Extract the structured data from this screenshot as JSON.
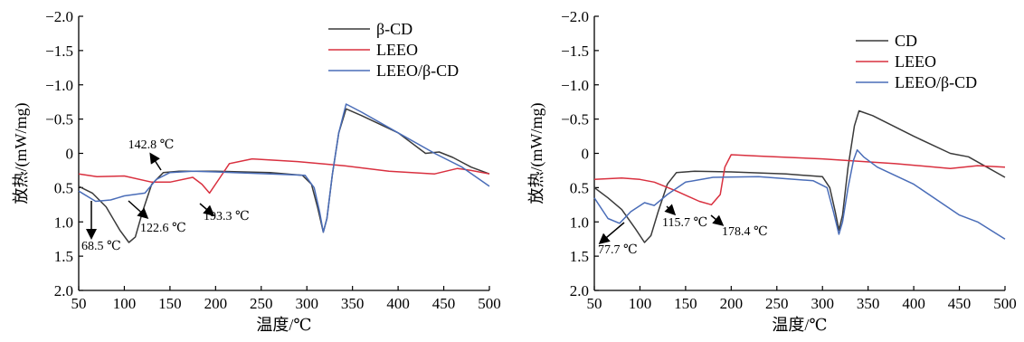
{
  "chart_data": [
    {
      "type": "line",
      "xlabel": "温度/℃",
      "ylabel": "放热/(mW/mg)",
      "xlim": [
        50,
        500
      ],
      "ylim": [
        -2.0,
        2.0
      ],
      "y_inverted": true,
      "xticks": [
        "50",
        "100",
        "150",
        "200",
        "250",
        "300",
        "350",
        "400",
        "450",
        "500"
      ],
      "yticks": [
        "−2.0",
        "−1.5",
        "−1.0",
        "−0.5",
        "0",
        "0.5",
        "1.0",
        "1.5",
        "2.0"
      ],
      "legend_position": "top-right",
      "series": [
        {
          "name": "β-CD",
          "color": "#3a3a3a",
          "points": [
            [
              50,
              0.48
            ],
            [
              65,
              0.58
            ],
            [
              80,
              0.78
            ],
            [
              95,
              1.12
            ],
            [
              105,
              1.3
            ],
            [
              112,
              1.22
            ],
            [
              120,
              0.85
            ],
            [
              130,
              0.45
            ],
            [
              142.8,
              0.28
            ],
            [
              160,
              0.26
            ],
            [
              200,
              0.26
            ],
            [
              260,
              0.28
            ],
            [
              295,
              0.32
            ],
            [
              305,
              0.45
            ],
            [
              312,
              0.8
            ],
            [
              318,
              1.15
            ],
            [
              322,
              0.95
            ],
            [
              328,
              0.3
            ],
            [
              335,
              -0.3
            ],
            [
              343,
              -0.65
            ],
            [
              360,
              -0.55
            ],
            [
              400,
              -0.3
            ],
            [
              430,
              0.0
            ],
            [
              445,
              -0.02
            ],
            [
              460,
              0.06
            ],
            [
              480,
              0.2
            ],
            [
              500,
              0.3
            ]
          ]
        },
        {
          "name": "LEEO",
          "color": "#d9303f",
          "points": [
            [
              50,
              0.3
            ],
            [
              70,
              0.34
            ],
            [
              100,
              0.33
            ],
            [
              130,
              0.42
            ],
            [
              150,
              0.42
            ],
            [
              175,
              0.35
            ],
            [
              185,
              0.45
            ],
            [
              193.3,
              0.58
            ],
            [
              205,
              0.35
            ],
            [
              215,
              0.15
            ],
            [
              240,
              0.08
            ],
            [
              290,
              0.12
            ],
            [
              340,
              0.18
            ],
            [
              390,
              0.26
            ],
            [
              440,
              0.3
            ],
            [
              465,
              0.22
            ],
            [
              480,
              0.25
            ],
            [
              500,
              0.3
            ]
          ]
        },
        {
          "name": "LEEO/β-CD",
          "color": "#4a6db8",
          "points": [
            [
              50,
              0.55
            ],
            [
              68.5,
              0.7
            ],
            [
              85,
              0.68
            ],
            [
              100,
              0.62
            ],
            [
              122.6,
              0.58
            ],
            [
              135,
              0.38
            ],
            [
              150,
              0.28
            ],
            [
              175,
              0.26
            ],
            [
              200,
              0.27
            ],
            [
              260,
              0.3
            ],
            [
              298,
              0.32
            ],
            [
              308,
              0.5
            ],
            [
              314,
              0.85
            ],
            [
              318,
              1.15
            ],
            [
              322,
              0.95
            ],
            [
              328,
              0.3
            ],
            [
              335,
              -0.3
            ],
            [
              343,
              -0.72
            ],
            [
              360,
              -0.6
            ],
            [
              400,
              -0.3
            ],
            [
              440,
              0.0
            ],
            [
              470,
              0.2
            ],
            [
              500,
              0.48
            ]
          ]
        }
      ],
      "annotations": [
        {
          "text": "142.8 ℃",
          "x": 142.8,
          "y": 0.28,
          "arrow": "up"
        },
        {
          "text": "122.6 ℃",
          "x": 122.6,
          "y": 0.58,
          "arrow": "down-right"
        },
        {
          "text": "193.3 ℃",
          "x": 193.3,
          "y": 0.58,
          "arrow": "down-right"
        },
        {
          "text": "68.5 ℃",
          "x": 68.5,
          "y": 0.7,
          "arrow": "down"
        }
      ]
    },
    {
      "type": "line",
      "xlabel": "温度/℃",
      "ylabel": "放热/(mW/mg)",
      "xlim": [
        50,
        500
      ],
      "ylim": [
        -2.0,
        2.0
      ],
      "y_inverted": true,
      "xticks": [
        "50",
        "100",
        "150",
        "200",
        "250",
        "300",
        "350",
        "400",
        "450",
        "500"
      ],
      "yticks": [
        "−2.0",
        "−1.5",
        "−1.0",
        "−0.5",
        "0",
        "0.5",
        "1.0",
        "1.5",
        "2.0"
      ],
      "legend_position": "top-right",
      "series": [
        {
          "name": "CD",
          "color": "#3a3a3a",
          "points": [
            [
              50,
              0.5
            ],
            [
              65,
              0.65
            ],
            [
              80,
              0.82
            ],
            [
              95,
              1.1
            ],
            [
              105,
              1.3
            ],
            [
              112,
              1.2
            ],
            [
              120,
              0.85
            ],
            [
              130,
              0.45
            ],
            [
              140,
              0.28
            ],
            [
              160,
              0.26
            ],
            [
              200,
              0.27
            ],
            [
              260,
              0.3
            ],
            [
              300,
              0.34
            ],
            [
              308,
              0.5
            ],
            [
              314,
              0.85
            ],
            [
              318,
              1.12
            ],
            [
              322,
              0.9
            ],
            [
              328,
              0.2
            ],
            [
              335,
              -0.4
            ],
            [
              340,
              -0.62
            ],
            [
              355,
              -0.55
            ],
            [
              400,
              -0.25
            ],
            [
              440,
              0.0
            ],
            [
              460,
              0.05
            ],
            [
              500,
              0.35
            ]
          ]
        },
        {
          "name": "LEEO",
          "color": "#d9303f",
          "points": [
            [
              50,
              0.38
            ],
            [
              80,
              0.36
            ],
            [
              100,
              0.38
            ],
            [
              115.7,
              0.42
            ],
            [
              140,
              0.55
            ],
            [
              165,
              0.7
            ],
            [
              178.4,
              0.75
            ],
            [
              188,
              0.6
            ],
            [
              193,
              0.2
            ],
            [
              200,
              0.02
            ],
            [
              230,
              0.04
            ],
            [
              300,
              0.08
            ],
            [
              380,
              0.15
            ],
            [
              440,
              0.22
            ],
            [
              470,
              0.18
            ],
            [
              500,
              0.2
            ]
          ]
        },
        {
          "name": "LEEO/β-CD",
          "color": "#4a6db8",
          "points": [
            [
              50,
              0.65
            ],
            [
              65,
              0.95
            ],
            [
              77.7,
              1.02
            ],
            [
              90,
              0.85
            ],
            [
              105,
              0.72
            ],
            [
              115.7,
              0.76
            ],
            [
              130,
              0.6
            ],
            [
              150,
              0.42
            ],
            [
              180,
              0.35
            ],
            [
              230,
              0.34
            ],
            [
              290,
              0.4
            ],
            [
              305,
              0.5
            ],
            [
              312,
              0.85
            ],
            [
              318,
              1.18
            ],
            [
              322,
              1.0
            ],
            [
              328,
              0.5
            ],
            [
              334,
              0.1
            ],
            [
              338,
              -0.05
            ],
            [
              345,
              0.05
            ],
            [
              360,
              0.2
            ],
            [
              400,
              0.45
            ],
            [
              450,
              0.9
            ],
            [
              470,
              1.0
            ],
            [
              500,
              1.25
            ]
          ]
        }
      ],
      "annotations": [
        {
          "text": "115.7 ℃",
          "x": 115.7,
          "y": 0.42,
          "arrow": "down-right"
        },
        {
          "text": "178.4 ℃",
          "x": 178.4,
          "y": 0.75,
          "arrow": "down-right"
        },
        {
          "text": "77.7 ℃",
          "x": 77.7,
          "y": 1.02,
          "arrow": "down-left"
        }
      ]
    }
  ]
}
